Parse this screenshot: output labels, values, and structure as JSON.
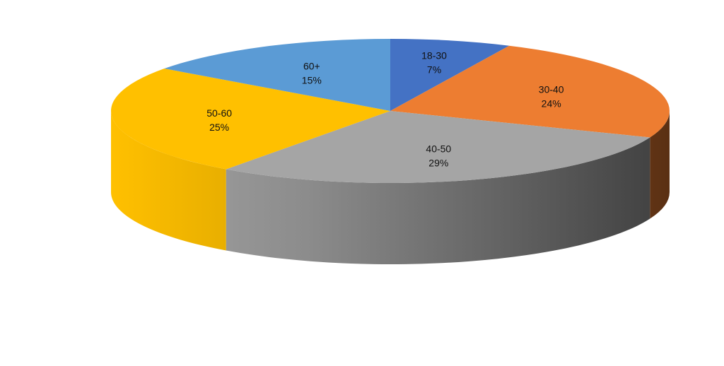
{
  "chart_data": {
    "type": "pie",
    "title": "",
    "categories": [
      "18-30",
      "30-40",
      "40-50",
      "50-60",
      "60+"
    ],
    "values": [
      7,
      24,
      29,
      25,
      15
    ],
    "value_labels": [
      "7%",
      "24%",
      "29%",
      "25%",
      "15%"
    ],
    "colors": [
      "#4472C4",
      "#ED7D31",
      "#A5A5A5",
      "#FFC000",
      "#5B9BD5"
    ],
    "legend": "none"
  }
}
